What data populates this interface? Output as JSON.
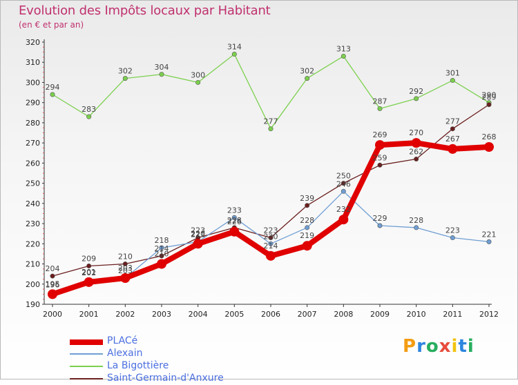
{
  "title": "Evolution des Impôts locaux par Habitant",
  "subtitle": "(en € et par an)",
  "logo": {
    "text": "Proxiti",
    "letters": [
      {
        "ch": "P",
        "color": "#f39c12"
      },
      {
        "ch": "r",
        "color": "#2e86de"
      },
      {
        "ch": "o",
        "color": "#27ae60"
      },
      {
        "ch": "x",
        "color": "#e74c3c"
      },
      {
        "ch": "i",
        "color": "#f1c40f"
      },
      {
        "ch": "t",
        "color": "#2e86de"
      },
      {
        "ch": "i",
        "color": "#27ae60"
      }
    ]
  },
  "chart_data": {
    "type": "line",
    "title": "Evolution des Impôts locaux par Habitant",
    "subtitle": "(en € et par an)",
    "x": [
      2000,
      2001,
      2002,
      2003,
      2004,
      2005,
      2006,
      2007,
      2008,
      2009,
      2010,
      2011,
      2012
    ],
    "ylim": [
      190,
      320
    ],
    "yticks": [
      190,
      200,
      210,
      220,
      230,
      240,
      250,
      260,
      270,
      280,
      290,
      300,
      310,
      320
    ],
    "grid": false,
    "legend_position": "bottom-left",
    "series": [
      {
        "name": "PLACé",
        "color": "#e00000",
        "values": [
          195,
          201,
          203,
          210,
          220,
          226,
          214,
          219,
          232,
          269,
          270,
          267,
          268
        ],
        "labels": [
          "195",
          "201",
          "203",
          "210",
          "220",
          "226",
          "214",
          "219",
          "232",
          "269",
          "270",
          "267",
          "268"
        ]
      },
      {
        "name": "Alexain",
        "color": "#6f9ed3",
        "values": [
          196,
          202,
          203,
          218,
          221,
          233,
          220,
          228,
          246,
          229,
          228,
          223,
          221
        ],
        "labels": [
          "196",
          "202",
          "203",
          "218",
          "221",
          "233",
          "220",
          "228",
          "246",
          "229",
          "228",
          "223",
          "221"
        ]
      },
      {
        "name": "La Bigottière",
        "color": "#7cd04e",
        "values": [
          294,
          283,
          302,
          304,
          300,
          314,
          277,
          302,
          313,
          287,
          292,
          301,
          290
        ],
        "labels": [
          "294",
          "283",
          "302",
          "304",
          "300",
          "314",
          "277",
          "302",
          "313",
          "287",
          "292",
          "301",
          "290"
        ]
      },
      {
        "name": "Saint-Germain-d'Anxure",
        "color": "#6b1f1f",
        "values": [
          204,
          209,
          210,
          214,
          223,
          228,
          223,
          239,
          250,
          259,
          262,
          277,
          289
        ],
        "labels": [
          "204",
          "209",
          "210",
          "214",
          "223",
          "228",
          "223",
          "239",
          "250",
          "259",
          "262",
          "277",
          "289"
        ]
      }
    ]
  }
}
